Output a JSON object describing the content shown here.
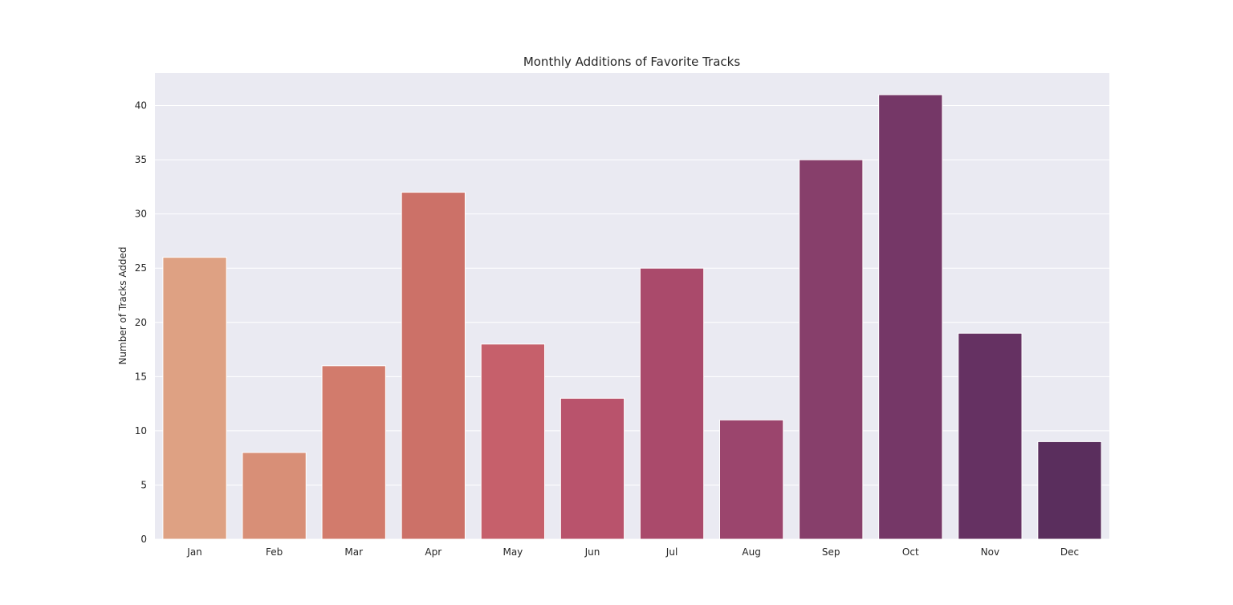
{
  "chart_data": {
    "type": "bar",
    "title": "Monthly Additions of Favorite Tracks",
    "xlabel": "",
    "ylabel": "Number of Tracks Added",
    "categories": [
      "Jan",
      "Feb",
      "Mar",
      "Apr",
      "May",
      "Jun",
      "Jul",
      "Aug",
      "Sep",
      "Oct",
      "Nov",
      "Dec"
    ],
    "values": [
      26,
      8,
      16,
      32,
      18,
      13,
      25,
      11,
      35,
      41,
      19,
      9
    ],
    "ylim": [
      0,
      43
    ],
    "yticks": [
      0,
      5,
      10,
      15,
      20,
      25,
      30,
      35,
      40
    ],
    "grid": true,
    "legend": "none",
    "colors": [
      "#dea183",
      "#d88f77",
      "#d27b6c",
      "#cc7168",
      "#c6606b",
      "#b9536c",
      "#aa4a6b",
      "#9b456d",
      "#873f6b",
      "#753767",
      "#653162",
      "#5a2e5d"
    ],
    "background": "#eaeaf2"
  }
}
